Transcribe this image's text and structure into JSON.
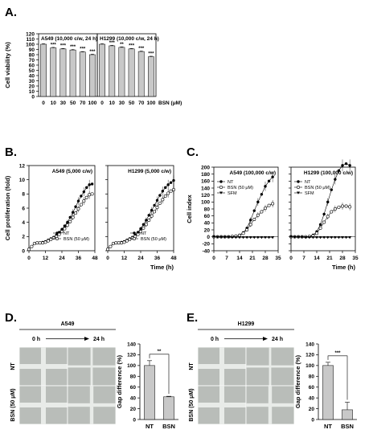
{
  "panels": {
    "A": "A.",
    "B": "B.",
    "C": "C.",
    "D": "D.",
    "E": "E."
  },
  "chart_data": [
    {
      "id": "A-left",
      "type": "bar",
      "title": "A549 (10,000 c/w, 24 h)",
      "categories": [
        "0",
        "10",
        "30",
        "50",
        "70",
        "100"
      ],
      "values": [
        100,
        93,
        91,
        89,
        85,
        80
      ],
      "errors": [
        1,
        1,
        1,
        1,
        1,
        1
      ],
      "stars": [
        "",
        "***",
        "***",
        "***",
        "***",
        "***"
      ],
      "ylabel": "Cell viability (%)",
      "yticks": [
        0,
        10,
        20,
        30,
        40,
        50,
        60,
        70,
        80,
        90,
        100,
        110,
        120
      ],
      "ylim": [
        0,
        120
      ]
    },
    {
      "id": "A-right",
      "type": "bar",
      "title": "H1299 (10,000 c/w, 24 h)",
      "categories": [
        "0",
        "10",
        "30",
        "50",
        "70",
        "100"
      ],
      "values": [
        100,
        97,
        94,
        91,
        86,
        76
      ],
      "errors": [
        1,
        1,
        1,
        1,
        1,
        1
      ],
      "stars": [
        "",
        "***",
        "**",
        "***",
        "***",
        "***"
      ],
      "xlabel": "BSN (μM)",
      "ylim": [
        0,
        120
      ]
    },
    {
      "id": "B-left",
      "type": "line",
      "title": "A549 (5,000 c/w)",
      "ylabel": "Cell proliferation (fold)",
      "xticks": [
        0,
        12,
        24,
        36,
        48
      ],
      "yticks": [
        0,
        2,
        4,
        6,
        8,
        10,
        12
      ],
      "xlim": [
        0,
        48
      ],
      "ylim": [
        0,
        12
      ],
      "series": [
        {
          "name": "NT",
          "marker": "filled",
          "x": [
            0,
            2,
            4,
            6,
            8,
            10,
            12,
            14,
            16,
            18,
            20,
            22,
            24,
            26,
            28,
            30,
            32,
            34,
            36,
            38,
            40,
            42,
            44,
            46
          ],
          "y": [
            0.2,
            0.6,
            1.0,
            1.1,
            1.1,
            1.2,
            1.3,
            1.5,
            1.7,
            1.9,
            2.2,
            2.6,
            3.0,
            3.5,
            4.0,
            4.7,
            5.4,
            6.2,
            7.0,
            7.7,
            8.3,
            8.9,
            9.3,
            9.4
          ]
        },
        {
          "name": "BSN (50 μM)",
          "marker": "open",
          "x": [
            0,
            2,
            4,
            6,
            8,
            10,
            12,
            14,
            16,
            18,
            20,
            22,
            24,
            26,
            28,
            30,
            32,
            34,
            36,
            38,
            40,
            42,
            44,
            46
          ],
          "y": [
            0.2,
            0.6,
            1.0,
            1.1,
            1.1,
            1.1,
            1.2,
            1.4,
            1.6,
            1.8,
            2.0,
            2.3,
            2.7,
            3.1,
            3.6,
            4.1,
            4.7,
            5.3,
            5.9,
            6.5,
            7.0,
            7.5,
            7.9,
            8.0
          ]
        }
      ]
    },
    {
      "id": "B-right",
      "type": "line",
      "title": "H1299 (5,000 c/w)",
      "xticks": [
        0,
        12,
        24,
        36,
        48
      ],
      "xlabel": "Time (h)",
      "xlim": [
        0,
        48
      ],
      "ylim": [
        0,
        12
      ],
      "series": [
        {
          "name": "NT",
          "marker": "filled",
          "x": [
            0,
            2,
            4,
            6,
            8,
            10,
            12,
            14,
            16,
            18,
            20,
            22,
            24,
            26,
            28,
            30,
            32,
            34,
            36,
            38,
            40,
            42,
            44,
            46,
            48
          ],
          "y": [
            0.2,
            0.6,
            1.0,
            1.1,
            1.1,
            1.2,
            1.3,
            1.5,
            1.7,
            1.9,
            2.2,
            2.6,
            3.1,
            3.7,
            4.3,
            5.0,
            5.7,
            6.4,
            7.1,
            7.8,
            8.4,
            8.9,
            9.3,
            9.6,
            9.9
          ]
        },
        {
          "name": "BSN (50 μM)",
          "marker": "open",
          "x": [
            0,
            2,
            4,
            6,
            8,
            10,
            12,
            14,
            16,
            18,
            20,
            22,
            24,
            26,
            28,
            30,
            32,
            34,
            36,
            38,
            40,
            42,
            44,
            46,
            48
          ],
          "y": [
            0.2,
            0.6,
            1.0,
            1.1,
            1.1,
            1.1,
            1.2,
            1.4,
            1.6,
            1.8,
            2.0,
            2.3,
            2.7,
            3.2,
            3.7,
            4.3,
            4.9,
            5.5,
            6.1,
            6.7,
            7.2,
            7.7,
            8.1,
            8.4,
            8.6
          ]
        }
      ]
    },
    {
      "id": "C-left",
      "type": "line",
      "title": "A549 (100,000 c/w)",
      "ylabel": "Cell index",
      "xticks": [
        0,
        7,
        14,
        21,
        28,
        35
      ],
      "yticks": [
        -40,
        -20,
        0,
        20,
        40,
        60,
        80,
        100,
        120,
        140,
        160,
        180,
        200
      ],
      "xlim": [
        0,
        35
      ],
      "ylim": [
        -40,
        200
      ],
      "series": [
        {
          "name": "NT",
          "marker": "filled",
          "x": [
            0,
            2,
            4,
            6,
            8,
            10,
            12,
            14,
            16,
            18,
            20,
            22,
            24,
            26,
            28,
            30,
            32
          ],
          "y": [
            0,
            0,
            0,
            0,
            0,
            1,
            2,
            5,
            12,
            25,
            48,
            75,
            100,
            122,
            145,
            160,
            172
          ]
        },
        {
          "name": "BSN (50 μM)",
          "marker": "open",
          "x": [
            0,
            2,
            4,
            6,
            8,
            10,
            12,
            14,
            16,
            18,
            20,
            22,
            24,
            26,
            28,
            30,
            32
          ],
          "y": [
            0,
            0,
            0,
            0,
            0,
            1,
            2,
            4,
            10,
            20,
            35,
            50,
            62,
            72,
            82,
            90,
            95
          ]
        },
        {
          "name": "SFM",
          "marker": "triangle",
          "x": [
            0,
            2,
            4,
            6,
            8,
            10,
            12,
            14,
            16,
            18,
            20,
            22,
            24,
            26,
            28,
            30,
            32
          ],
          "y": [
            0,
            -1,
            -1,
            -1,
            -1,
            -2,
            -2,
            -2,
            -2,
            -2,
            -2,
            -2,
            -2,
            -2,
            -2,
            -2,
            -2
          ]
        }
      ]
    },
    {
      "id": "C-right",
      "type": "line",
      "title": "H1299 (100,000 c/w)",
      "xticks": [
        0,
        7,
        14,
        21,
        28,
        35
      ],
      "xlabel": "Time (h)",
      "xlim": [
        0,
        35
      ],
      "ylim": [
        -40,
        200
      ],
      "series": [
        {
          "name": "NT",
          "marker": "filled",
          "x": [
            0,
            2,
            4,
            6,
            8,
            10,
            12,
            14,
            16,
            18,
            20,
            22,
            24,
            26,
            28,
            30,
            32
          ],
          "y": [
            0,
            0,
            0,
            0,
            0,
            1,
            5,
            15,
            35,
            65,
            100,
            135,
            165,
            190,
            205,
            210,
            205
          ]
        },
        {
          "name": "BSN (50 μM)",
          "marker": "open",
          "x": [
            0,
            2,
            4,
            6,
            8,
            10,
            12,
            14,
            16,
            18,
            20,
            22,
            24,
            26,
            28,
            30,
            32
          ],
          "y": [
            0,
            0,
            0,
            0,
            0,
            1,
            3,
            10,
            25,
            42,
            58,
            72,
            80,
            85,
            88,
            88,
            86
          ]
        },
        {
          "name": "SFM",
          "marker": "triangle",
          "x": [
            0,
            2,
            4,
            6,
            8,
            10,
            12,
            14,
            16,
            18,
            20,
            22,
            24,
            26,
            28,
            30,
            32
          ],
          "y": [
            0,
            -1,
            -1,
            -1,
            -2,
            -2,
            -2,
            -2,
            -2,
            -2,
            -2,
            -2,
            -2,
            -2,
            -2,
            -2,
            -2
          ]
        }
      ]
    },
    {
      "id": "D-bar",
      "type": "bar",
      "categories": [
        "NT",
        "BSN"
      ],
      "values": [
        100,
        42
      ],
      "errors": [
        9,
        1
      ],
      "significance": "**",
      "ylabel": "Gap difference (%)",
      "yticks": [
        0,
        20,
        40,
        60,
        80,
        100,
        120,
        140
      ],
      "ylim": [
        0,
        140
      ]
    },
    {
      "id": "E-bar",
      "type": "bar",
      "categories": [
        "NT",
        "BSN"
      ],
      "values": [
        100,
        18
      ],
      "errors": [
        6,
        14
      ],
      "significance": "***",
      "ylabel": "Gap difference (%)",
      "yticks": [
        0,
        20,
        40,
        60,
        80,
        100,
        120,
        140
      ],
      "ylim": [
        0,
        140
      ]
    }
  ],
  "micrographs": {
    "D": {
      "title": "A549",
      "time_start": "0 h",
      "time_end": "24 h",
      "row_nt": "NT",
      "row_bsn": "BSN (50 μM)"
    },
    "E": {
      "title": "H1299",
      "time_start": "0 h",
      "time_end": "24 h",
      "row_nt": "NT",
      "row_bsn": "BSN (50 μM)"
    }
  },
  "colors": {
    "bar": "#c8c8c8",
    "micrograph": "#b9bdb9",
    "gap": "#e8ebe8"
  }
}
